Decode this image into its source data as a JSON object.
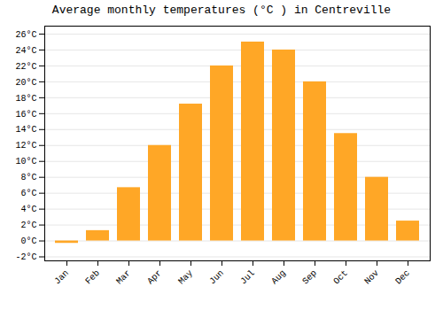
{
  "chart_data": {
    "type": "bar",
    "title": "Average monthly temperatures (°C ) in Centreville",
    "categories": [
      "Jan",
      "Feb",
      "Mar",
      "Apr",
      "May",
      "Jun",
      "Jul",
      "Aug",
      "Sep",
      "Oct",
      "Nov",
      "Dec"
    ],
    "values": [
      -0.3,
      1.3,
      6.7,
      12.0,
      17.2,
      22.0,
      25.0,
      24.0,
      20.0,
      13.5,
      8.0,
      2.5
    ],
    "color": "#FFA726",
    "ylim": [
      -2.5,
      27
    ],
    "yticks": [
      {
        "value": -2,
        "label": "-2°C"
      },
      {
        "value": 0,
        "label": "0°C"
      },
      {
        "value": 2,
        "label": "2°C"
      },
      {
        "value": 4,
        "label": "4°C"
      },
      {
        "value": 6,
        "label": "6°C"
      },
      {
        "value": 8,
        "label": "8°C"
      },
      {
        "value": 10,
        "label": "10°C"
      },
      {
        "value": 12,
        "label": "12°C"
      },
      {
        "value": 14,
        "label": "14°C"
      },
      {
        "value": 16,
        "label": "16°C"
      },
      {
        "value": 18,
        "label": "18°C"
      },
      {
        "value": 20,
        "label": "20°C"
      },
      {
        "value": 22,
        "label": "22°C"
      },
      {
        "value": 24,
        "label": "24°C"
      },
      {
        "value": 26,
        "label": "26°C"
      }
    ],
    "grid": true
  }
}
